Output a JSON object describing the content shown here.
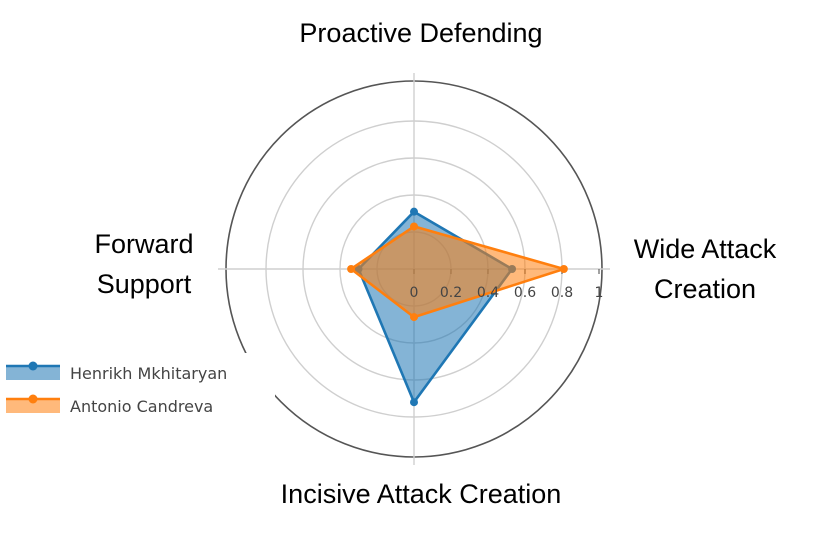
{
  "chart_data": {
    "type": "radar",
    "axes": [
      "Proactive Defending",
      "Wide Attack Creation",
      "Incisive Attack Creation",
      "Forward Support"
    ],
    "axis_label_lines": [
      [
        "Proactive Defending"
      ],
      [
        "Wide Attack",
        "Creation"
      ],
      [
        "Incisive Attack Creation"
      ],
      [
        "Forward",
        "Support"
      ]
    ],
    "radial_ticks": [
      "0",
      "0.2",
      "0.4",
      "0.6",
      "0.8",
      "1"
    ],
    "rlim": [
      0,
      1
    ],
    "grid": true,
    "legend_position": "left",
    "series": [
      {
        "name": "Henrikh Mkhitaryan",
        "color": "#1f77b4",
        "values": [
          0.31,
          0.53,
          0.72,
          0.3
        ]
      },
      {
        "name": "Antonio Candreva",
        "color": "#ff7f0e",
        "values": [
          0.23,
          0.81,
          0.26,
          0.34
        ]
      }
    ]
  }
}
